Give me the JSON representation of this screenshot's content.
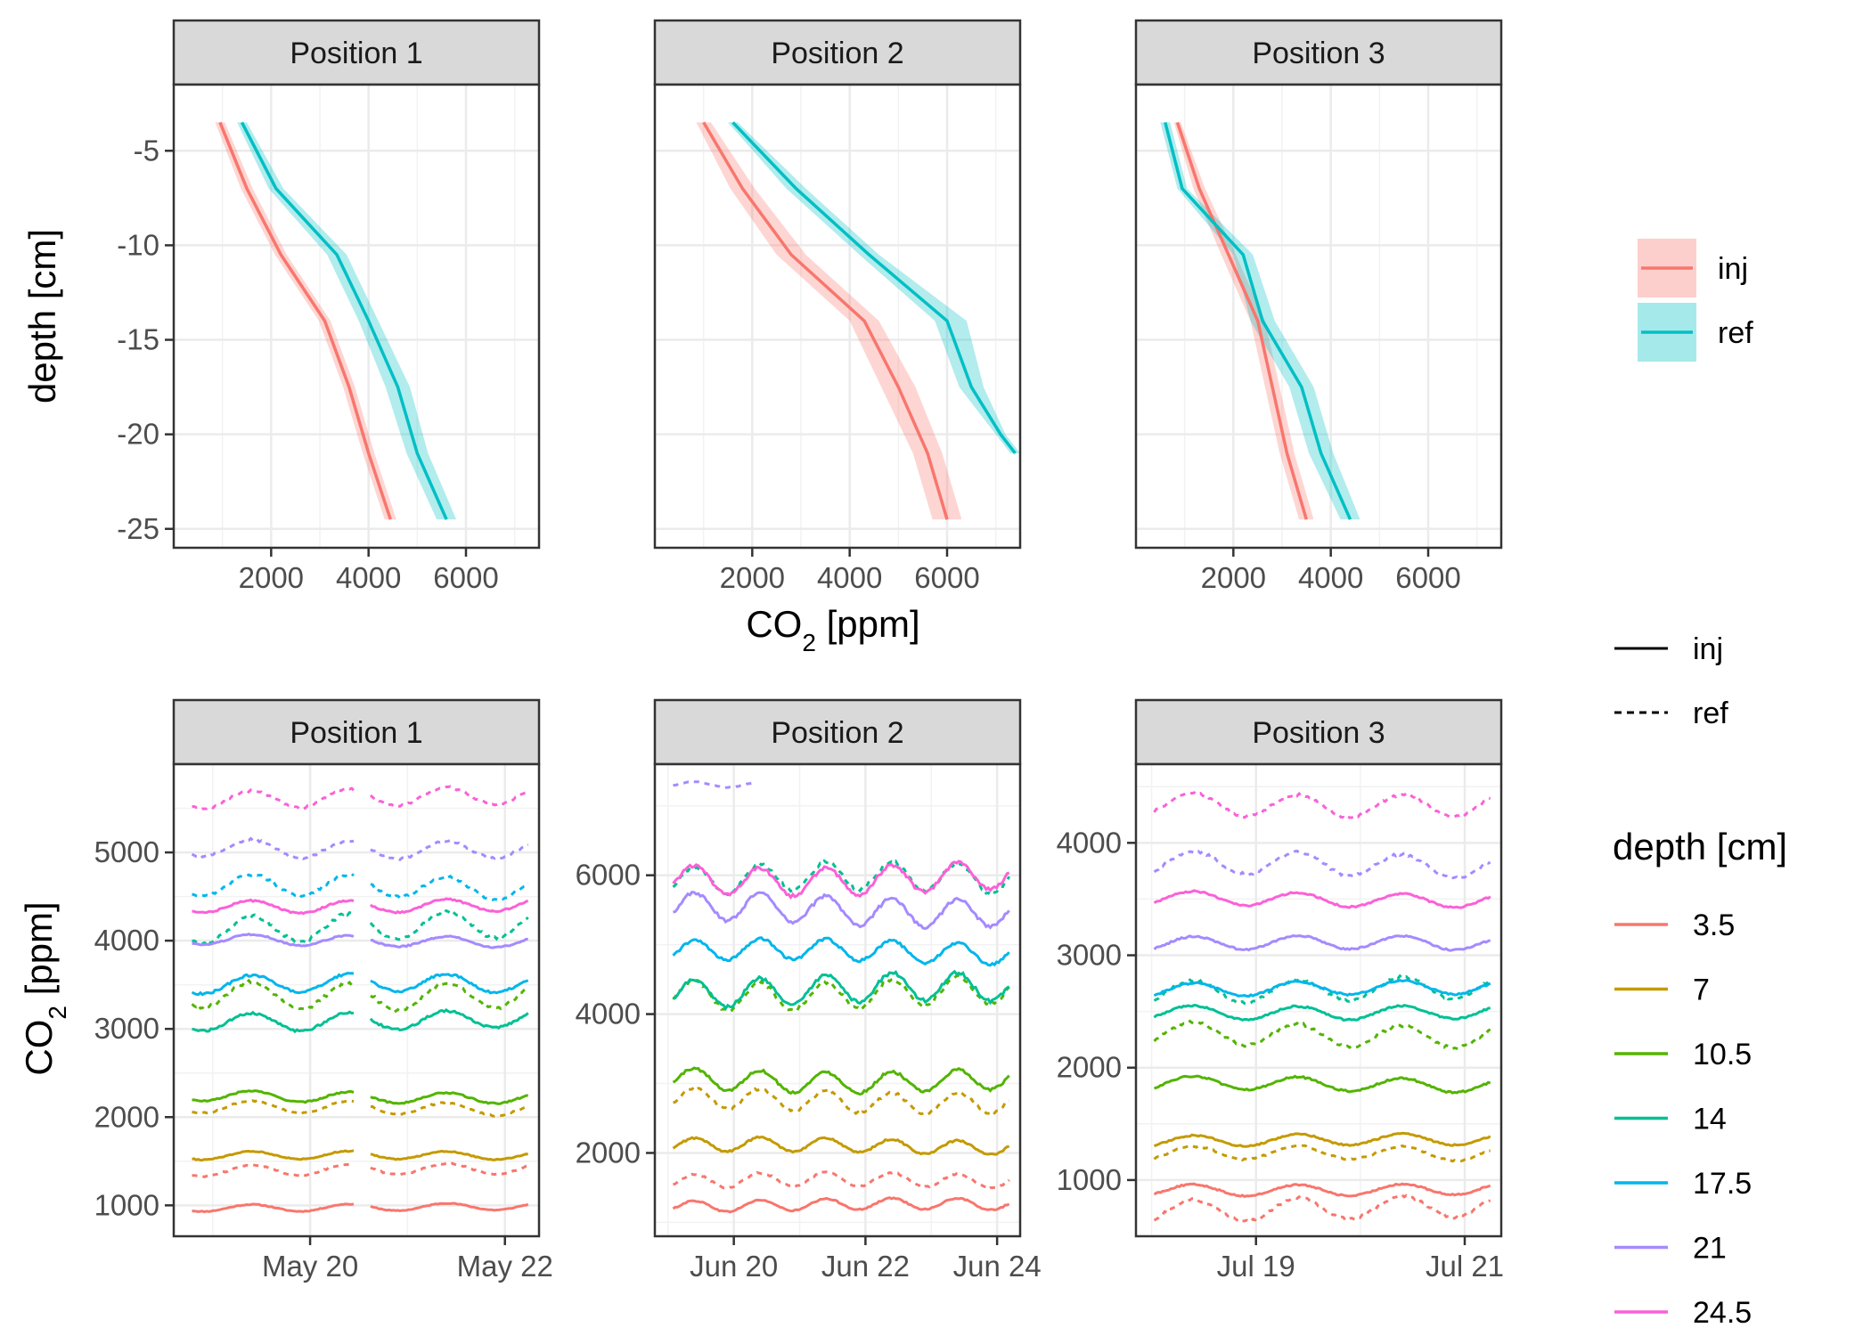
{
  "chart_data": [
    {
      "type": "line",
      "panel": "Position 1",
      "strip": "Position 1",
      "xlabel_sub": "2",
      "xlim": [
        0,
        7500
      ],
      "ylim": [
        -26,
        -1.5
      ],
      "xticks": [
        2000,
        4000,
        6000
      ],
      "xtick_labels": [
        "2000",
        "4000",
        "6000"
      ],
      "yticks": [
        -5,
        -10,
        -15,
        -20,
        -25
      ],
      "ytick_labels": [
        "-5",
        "-10",
        "-15",
        "-20",
        "-25"
      ],
      "grid": true,
      "series": [
        {
          "name": "inj",
          "color": "#F8766D",
          "points": [
            [
              950,
              -3.5
            ],
            [
              1500,
              -7
            ],
            [
              2200,
              -10.5
            ],
            [
              3100,
              -14
            ],
            [
              3600,
              -17.5
            ],
            [
              4000,
              -21
            ],
            [
              4450,
              -24.5
            ]
          ],
          "band": [
            [
              850,
              1050
            ],
            [
              1380,
              1620
            ],
            [
              2080,
              2320
            ],
            [
              2980,
              3220
            ],
            [
              3480,
              3720
            ],
            [
              3880,
              4120
            ],
            [
              4330,
              4570
            ]
          ]
        },
        {
          "name": "ref",
          "color": "#00BFC4",
          "points": [
            [
              1400,
              -3.5
            ],
            [
              2100,
              -7
            ],
            [
              3350,
              -10.5
            ],
            [
              4000,
              -14
            ],
            [
              4600,
              -17.5
            ],
            [
              5000,
              -21
            ],
            [
              5600,
              -24.5
            ]
          ],
          "band": [
            [
              1300,
              1500
            ],
            [
              1950,
              2250
            ],
            [
              3150,
              3550
            ],
            [
              3800,
              4200
            ],
            [
              4350,
              4850
            ],
            [
              4780,
              5220
            ],
            [
              5400,
              5800
            ]
          ]
        }
      ]
    },
    {
      "type": "line",
      "panel": "Position 2",
      "strip": "Position 2",
      "xlim": [
        0,
        7500
      ],
      "ylim": [
        -26,
        -1.5
      ],
      "xticks": [
        2000,
        4000,
        6000
      ],
      "xtick_labels": [
        "2000",
        "4000",
        "6000"
      ],
      "series": [
        {
          "name": "inj",
          "color": "#F8766D",
          "points": [
            [
              1000,
              -3.5
            ],
            [
              1800,
              -7
            ],
            [
              2800,
              -10.5
            ],
            [
              4300,
              -14
            ],
            [
              5000,
              -17.5
            ],
            [
              5600,
              -21
            ],
            [
              6000,
              -24.5
            ]
          ],
          "band": [
            [
              850,
              1150
            ],
            [
              1550,
              2050
            ],
            [
              2500,
              3100
            ],
            [
              4000,
              4600
            ],
            [
              4650,
              5350
            ],
            [
              5300,
              5900
            ],
            [
              5700,
              6300
            ]
          ]
        },
        {
          "name": "ref",
          "color": "#00BFC4",
          "points": [
            [
              1600,
              -3.5
            ],
            [
              2900,
              -7
            ],
            [
              4400,
              -10.5
            ],
            [
              6000,
              -14
            ],
            [
              6500,
              -17.5
            ],
            [
              7100,
              -20
            ],
            [
              7400,
              -21
            ]
          ],
          "band": [
            [
              1500,
              1700
            ],
            [
              2700,
              3100
            ],
            [
              4200,
              4600
            ],
            [
              5750,
              6400
            ],
            [
              6250,
              6750
            ],
            [
              7000,
              7200
            ],
            [
              7300,
              7500
            ]
          ]
        }
      ]
    },
    {
      "type": "line",
      "panel": "Position 3",
      "strip": "Position 3",
      "xlim": [
        0,
        7500
      ],
      "ylim": [
        -26,
        -1.5
      ],
      "xticks": [
        2000,
        4000,
        6000
      ],
      "xtick_labels": [
        "2000",
        "4000",
        "6000"
      ],
      "series": [
        {
          "name": "inj",
          "color": "#F8766D",
          "points": [
            [
              850,
              -3.5
            ],
            [
              1300,
              -7
            ],
            [
              1900,
              -10.5
            ],
            [
              2500,
              -14
            ],
            [
              2800,
              -17.5
            ],
            [
              3100,
              -21
            ],
            [
              3500,
              -24.5
            ]
          ],
          "band": [
            [
              780,
              920
            ],
            [
              1180,
              1420
            ],
            [
              1750,
              2050
            ],
            [
              2350,
              2650
            ],
            [
              2650,
              2950
            ],
            [
              2950,
              3250
            ],
            [
              3350,
              3650
            ]
          ]
        },
        {
          "name": "ref",
          "color": "#00BFC4",
          "points": [
            [
              600,
              -3.5
            ],
            [
              950,
              -7
            ],
            [
              2200,
              -10.5
            ],
            [
              2600,
              -14
            ],
            [
              3400,
              -17.5
            ],
            [
              3800,
              -21
            ],
            [
              4400,
              -24.5
            ]
          ],
          "band": [
            [
              500,
              700
            ],
            [
              850,
              1050
            ],
            [
              2000,
              2400
            ],
            [
              2350,
              2850
            ],
            [
              3150,
              3650
            ],
            [
              3550,
              4050
            ],
            [
              4200,
              4600
            ]
          ]
        }
      ]
    },
    {
      "type": "line",
      "panel": "Position 1",
      "strip": "Position 1",
      "xlim": [
        18.6,
        22.35
      ],
      "ylim": [
        650,
        6000
      ],
      "xticks": [
        20,
        22
      ],
      "xtick_labels": [
        "May 20",
        "May 22"
      ],
      "yticks": [
        1000,
        2000,
        3000,
        4000,
        5000
      ],
      "ytick_labels": [
        "1000",
        "2000",
        "3000",
        "4000",
        "5000"
      ],
      "gaps": [
        [
          20.45,
          20.6
        ]
      ],
      "series": [
        {
          "depth": "3.5",
          "linetype": "inj",
          "base": 980,
          "amp": 40
        },
        {
          "depth": "3.5",
          "linetype": "ref",
          "base": 1400,
          "amp": 60
        },
        {
          "depth": "7",
          "linetype": "inj",
          "base": 1560,
          "amp": 45
        },
        {
          "depth": "7",
          "linetype": "ref",
          "base": 2100,
          "amp": 70
        },
        {
          "depth": "10.5",
          "linetype": "inj",
          "base": 2230,
          "amp": 60
        },
        {
          "depth": "10.5",
          "linetype": "ref",
          "base": 3400,
          "amp": 150
        },
        {
          "depth": "14",
          "linetype": "inj",
          "base": 3100,
          "amp": 100
        },
        {
          "depth": "14",
          "linetype": "ref",
          "base": 4150,
          "amp": 150
        },
        {
          "depth": "17.5",
          "linetype": "inj",
          "base": 3500,
          "amp": 100
        },
        {
          "depth": "17.5",
          "linetype": "ref",
          "base": 4600,
          "amp": 120
        },
        {
          "depth": "21",
          "linetype": "inj",
          "base": 4000,
          "amp": 60
        },
        {
          "depth": "21",
          "linetype": "ref",
          "base": 5050,
          "amp": 100
        },
        {
          "depth": "24.5",
          "linetype": "inj",
          "base": 4400,
          "amp": 70
        },
        {
          "depth": "24.5",
          "linetype": "ref",
          "base": 5620,
          "amp": 100
        }
      ]
    },
    {
      "type": "line",
      "panel": "Position 2",
      "strip": "Position 2",
      "xlim": [
        18.8,
        24.35
      ],
      "ylim": [
        800,
        7600
      ],
      "xticks": [
        20,
        22,
        24
      ],
      "xtick_labels": [
        "Jun 20",
        "Jun 22",
        "Jun 24"
      ],
      "yticks": [
        2000,
        4000,
        6000
      ],
      "ytick_labels": [
        "2000",
        "4000",
        "6000"
      ],
      "series": [
        {
          "depth": "3.5",
          "linetype": "inj",
          "base": 1250,
          "amp": 80
        },
        {
          "depth": "3.5",
          "linetype": "ref",
          "base": 1600,
          "amp": 100
        },
        {
          "depth": "7",
          "linetype": "inj",
          "base": 2100,
          "amp": 100
        },
        {
          "depth": "7",
          "linetype": "ref",
          "base": 2750,
          "amp": 150
        },
        {
          "depth": "10.5",
          "linetype": "inj",
          "base": 3050,
          "amp": 150
        },
        {
          "depth": "10.5",
          "linetype": "ref",
          "base": 4300,
          "amp": 200
        },
        {
          "depth": "14",
          "linetype": "inj",
          "base": 4350,
          "amp": 200
        },
        {
          "depth": "14",
          "linetype": "ref",
          "base": 5950,
          "amp": 200
        },
        {
          "depth": "17.5",
          "linetype": "inj",
          "base": 4900,
          "amp": 150
        },
        {
          "depth": "21",
          "linetype": "inj",
          "base": 5500,
          "amp": 200
        },
        {
          "depth": "21",
          "linetype": "ref",
          "base": 7300,
          "amp": 40
        },
        {
          "depth": "24.5",
          "linetype": "inj",
          "base": 5950,
          "amp": 200
        }
      ]
    },
    {
      "type": "line",
      "panel": "Position 3",
      "strip": "Position 3",
      "xlim": [
        17.85,
        21.35
      ],
      "ylim": [
        500,
        4700
      ],
      "xticks": [
        19,
        21
      ],
      "xtick_labels": [
        "Jul 19",
        "Jul 21"
      ],
      "yticks": [
        1000,
        2000,
        3000,
        4000
      ],
      "ytick_labels": [
        "1000",
        "2000",
        "3000",
        "4000"
      ],
      "series": [
        {
          "depth": "3.5",
          "linetype": "inj",
          "base": 920,
          "amp": 50
        },
        {
          "depth": "3.5",
          "linetype": "ref",
          "base": 750,
          "amp": 100
        },
        {
          "depth": "7",
          "linetype": "inj",
          "base": 1350,
          "amp": 50
        },
        {
          "depth": "7",
          "linetype": "ref",
          "base": 1230,
          "amp": 60
        },
        {
          "depth": "10.5",
          "linetype": "inj",
          "base": 1850,
          "amp": 60
        },
        {
          "depth": "10.5",
          "linetype": "ref",
          "base": 2300,
          "amp": 100
        },
        {
          "depth": "14",
          "linetype": "inj",
          "base": 2500,
          "amp": 60
        },
        {
          "depth": "14",
          "linetype": "ref",
          "base": 2700,
          "amp": 100
        },
        {
          "depth": "17.5",
          "linetype": "inj",
          "base": 2700,
          "amp": 60
        },
        {
          "depth": "21",
          "linetype": "inj",
          "base": 3100,
          "amp": 60
        },
        {
          "depth": "21",
          "linetype": "ref",
          "base": 3800,
          "amp": 100
        },
        {
          "depth": "24.5",
          "linetype": "inj",
          "base": 3500,
          "amp": 60
        },
        {
          "depth": "24.5",
          "linetype": "ref",
          "base": 4350,
          "amp": 100
        }
      ]
    }
  ],
  "axis_titles": {
    "depth": "depth [cm]",
    "co2_ppm_main": "CO",
    "co2_ppm_sub": "2",
    "co2_ppm_rest": " [ppm]"
  },
  "legend": {
    "fill": [
      {
        "label": "inj",
        "color": "#F8766D"
      },
      {
        "label": "ref",
        "color": "#00BFC4"
      }
    ],
    "linetype": [
      {
        "label": "inj"
      },
      {
        "label": "ref"
      }
    ],
    "depth_title": "depth [cm]",
    "depth": [
      {
        "label": "3.5",
        "color": "#F8766D"
      },
      {
        "label": "7",
        "color": "#C49A00"
      },
      {
        "label": "10.5",
        "color": "#53B400"
      },
      {
        "label": "14",
        "color": "#00C094"
      },
      {
        "label": "17.5",
        "color": "#00B6EB"
      },
      {
        "label": "21",
        "color": "#A58AFF"
      },
      {
        "label": "24.5",
        "color": "#FB61D7"
      }
    ]
  }
}
